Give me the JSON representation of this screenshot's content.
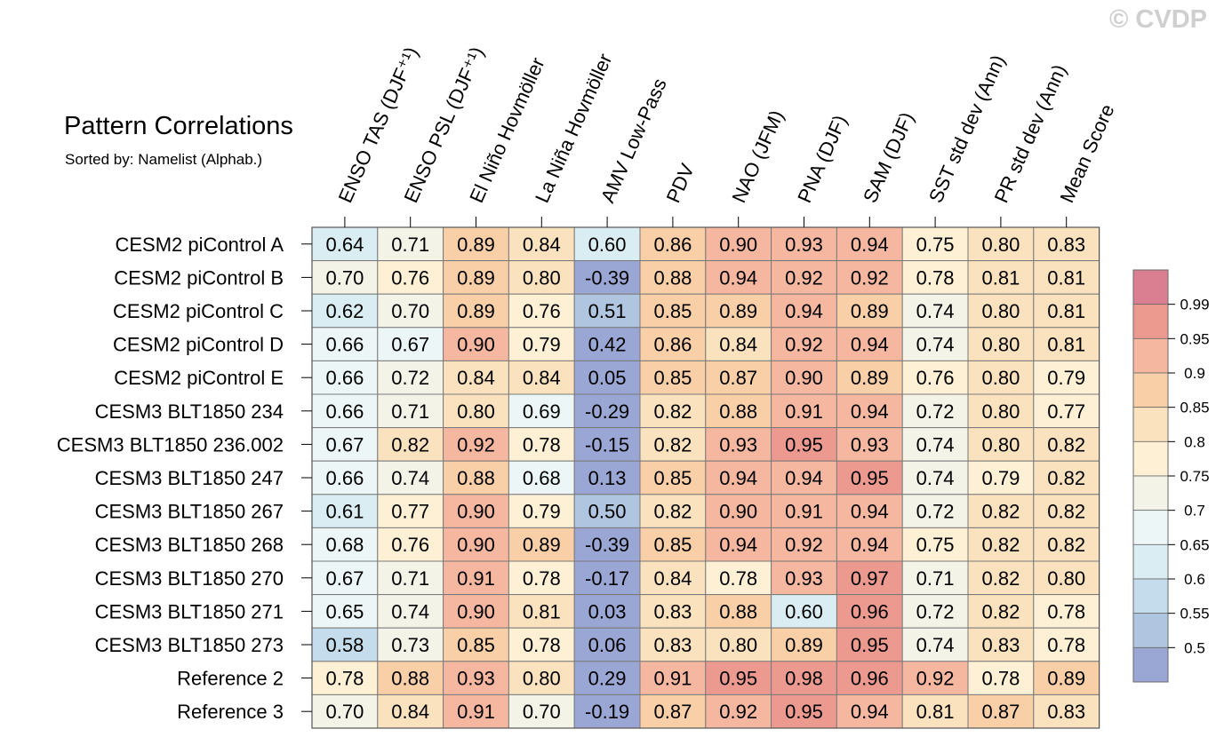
{
  "header": {
    "title": "Pattern Correlations",
    "subtitle": "Sorted by: Namelist (Alphab.)",
    "watermark": "© CVDP"
  },
  "chart_data": {
    "type": "heatmap",
    "title": "Pattern Correlations",
    "subtitle": "Sorted by: Namelist (Alphab.)",
    "columns": [
      "ENSO TAS (DJF⁺¹)",
      "ENSO PSL (DJF⁺¹)",
      "El Niño Hovmöller",
      "La Niña Hovmöller",
      "AMV Low-Pass",
      "PDV",
      "NAO (JFM)",
      "PNA (DJF)",
      "SAM (DJF)",
      "SST std dev (Ann)",
      "PR std dev (Ann)",
      "Mean Score"
    ],
    "rows": [
      "CESM2 piControl A",
      "CESM2 piControl B",
      "CESM2 piControl C",
      "CESM2 piControl D",
      "CESM2 piControl E",
      "CESM3 BLT1850 234",
      "CESM3 BLT1850 236.002",
      "CESM3 BLT1850 247",
      "CESM3 BLT1850 267",
      "CESM3 BLT1850 268",
      "CESM3 BLT1850 270",
      "CESM3 BLT1850 271",
      "CESM3 BLT1850 273",
      "Reference 2",
      "Reference 3"
    ],
    "values": [
      [
        "0.64",
        "0.71",
        "0.89",
        "0.84",
        "0.60",
        "0.86",
        "0.90",
        "0.93",
        "0.94",
        "0.75",
        "0.80",
        "0.83"
      ],
      [
        "0.70",
        "0.76",
        "0.89",
        "0.80",
        "-0.39",
        "0.88",
        "0.94",
        "0.92",
        "0.92",
        "0.78",
        "0.81",
        "0.81"
      ],
      [
        "0.62",
        "0.70",
        "0.89",
        "0.76",
        "0.51",
        "0.85",
        "0.89",
        "0.94",
        "0.89",
        "0.74",
        "0.80",
        "0.81"
      ],
      [
        "0.66",
        "0.67",
        "0.90",
        "0.79",
        "0.42",
        "0.86",
        "0.84",
        "0.92",
        "0.94",
        "0.74",
        "0.80",
        "0.81"
      ],
      [
        "0.66",
        "0.72",
        "0.84",
        "0.84",
        "0.05",
        "0.85",
        "0.87",
        "0.90",
        "0.89",
        "0.76",
        "0.80",
        "0.79"
      ],
      [
        "0.66",
        "0.71",
        "0.80",
        "0.69",
        "-0.29",
        "0.82",
        "0.88",
        "0.91",
        "0.94",
        "0.72",
        "0.80",
        "0.77"
      ],
      [
        "0.67",
        "0.82",
        "0.92",
        "0.78",
        "-0.15",
        "0.82",
        "0.93",
        "0.95",
        "0.93",
        "0.74",
        "0.80",
        "0.82"
      ],
      [
        "0.66",
        "0.74",
        "0.88",
        "0.68",
        "0.13",
        "0.85",
        "0.94",
        "0.94",
        "0.95",
        "0.74",
        "0.79",
        "0.82"
      ],
      [
        "0.61",
        "0.77",
        "0.90",
        "0.79",
        "0.50",
        "0.82",
        "0.90",
        "0.91",
        "0.94",
        "0.72",
        "0.82",
        "0.82"
      ],
      [
        "0.68",
        "0.76",
        "0.90",
        "0.89",
        "-0.39",
        "0.85",
        "0.94",
        "0.92",
        "0.94",
        "0.75",
        "0.82",
        "0.82"
      ],
      [
        "0.67",
        "0.71",
        "0.91",
        "0.78",
        "-0.17",
        "0.84",
        "0.78",
        "0.93",
        "0.97",
        "0.71",
        "0.82",
        "0.80"
      ],
      [
        "0.65",
        "0.74",
        "0.90",
        "0.81",
        "0.03",
        "0.83",
        "0.88",
        "0.60",
        "0.96",
        "0.72",
        "0.82",
        "0.78"
      ],
      [
        "0.58",
        "0.73",
        "0.85",
        "0.78",
        "0.06",
        "0.83",
        "0.80",
        "0.89",
        "0.95",
        "0.74",
        "0.83",
        "0.78"
      ],
      [
        "0.78",
        "0.88",
        "0.93",
        "0.80",
        "0.29",
        "0.91",
        "0.95",
        "0.98",
        "0.96",
        "0.92",
        "0.78",
        "0.89"
      ],
      [
        "0.70",
        "0.84",
        "0.91",
        "0.70",
        "-0.19",
        "0.87",
        "0.92",
        "0.95",
        "0.94",
        "0.81",
        "0.87",
        "0.83"
      ]
    ],
    "colorbar": {
      "levels": [
        "0.99",
        "0.95",
        "0.9",
        "0.85",
        "0.8",
        "0.75",
        "0.7",
        "0.65",
        "0.6",
        "0.55",
        "0.5"
      ],
      "colors": [
        "#9aa7d4",
        "#b0c6e0",
        "#c4dceb",
        "#daedf3",
        "#ecf6f7",
        "#f4f3e8",
        "#fdf0d4",
        "#fbe2be",
        "#f9cfa8",
        "#f6b7a0",
        "#ec9a90",
        "#d97f91"
      ]
    }
  }
}
